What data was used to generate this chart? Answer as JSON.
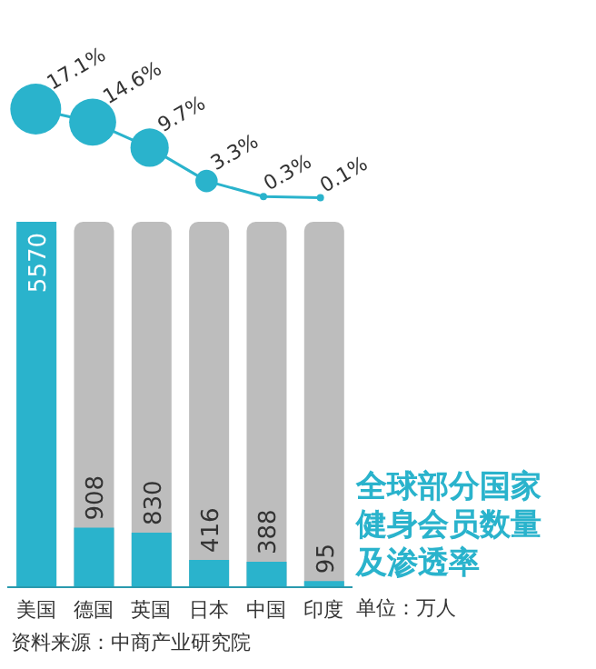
{
  "chart_data": [
    {
      "type": "line",
      "marker": "circle",
      "categories": [
        null,
        null,
        null,
        null,
        null,
        null
      ],
      "values": [
        17.1,
        14.6,
        9.7,
        3.3,
        0.3,
        0.1
      ],
      "value_labels": [
        "17.1%",
        "14.6%",
        "9.7%",
        "3.3%",
        "0.3%",
        "0.1%"
      ],
      "color": "#2ab3cc",
      "tick_labels": false
    },
    {
      "type": "bar",
      "title": "全球部分国家健身会员数量及渗透率",
      "categories": [
        "美国",
        "德国",
        "英国",
        "日本",
        "中国",
        "印度"
      ],
      "values": [
        5570,
        908,
        830,
        416,
        388,
        95
      ],
      "color": "#2ab3cc",
      "ylim": [
        0,
        5570
      ],
      "data_labels": true,
      "tick_labels": "x",
      "annotations": [
        "单位：万人",
        "资料来源：中商产业研究院"
      ]
    }
  ]
}
